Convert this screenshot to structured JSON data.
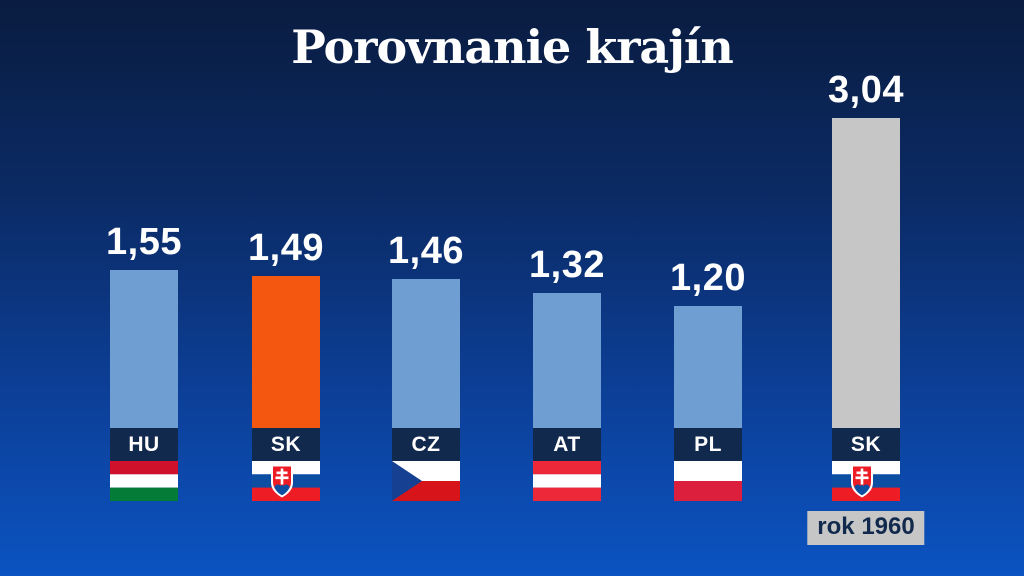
{
  "title": "Porovnanie krajín",
  "annotation": "rok 1960",
  "colors": {
    "background_top": "#0a1c40",
    "background_bottom": "#0b53c1",
    "bar_default": "#6f9ed3",
    "bar_highlight": "#f4570f",
    "bar_historic": "#c6c6c6",
    "label_box": "#12294e",
    "value_text": "#ffffff",
    "annotation_bg": "#c6c6c6",
    "annotation_text": "#12294e"
  },
  "chart_data": {
    "type": "bar",
    "title": "Porovnanie krajín",
    "categories": [
      "HU",
      "SK",
      "CZ",
      "AT",
      "PL",
      "SK"
    ],
    "values": [
      1.55,
      1.49,
      1.46,
      1.32,
      1.2,
      3.04
    ],
    "ylim": [
      0,
      3.04
    ],
    "grid": false,
    "legend": false,
    "xlabel": "",
    "ylabel": "",
    "bars": [
      {
        "code": "HU",
        "value": 1.55,
        "value_label": "1,55",
        "color": "#6f9ed3",
        "flag": "hu",
        "note": ""
      },
      {
        "code": "SK",
        "value": 1.49,
        "value_label": "1,49",
        "color": "#f4570f",
        "flag": "sk",
        "note": ""
      },
      {
        "code": "CZ",
        "value": 1.46,
        "value_label": "1,46",
        "color": "#6f9ed3",
        "flag": "cz",
        "note": ""
      },
      {
        "code": "AT",
        "value": 1.32,
        "value_label": "1,32",
        "color": "#6f9ed3",
        "flag": "at",
        "note": ""
      },
      {
        "code": "PL",
        "value": 1.2,
        "value_label": "1,20",
        "color": "#6f9ed3",
        "flag": "pl",
        "note": ""
      },
      {
        "code": "SK",
        "value": 3.04,
        "value_label": "3,04",
        "color": "#c6c6c6",
        "flag": "sk",
        "note": "rok 1960"
      }
    ]
  }
}
